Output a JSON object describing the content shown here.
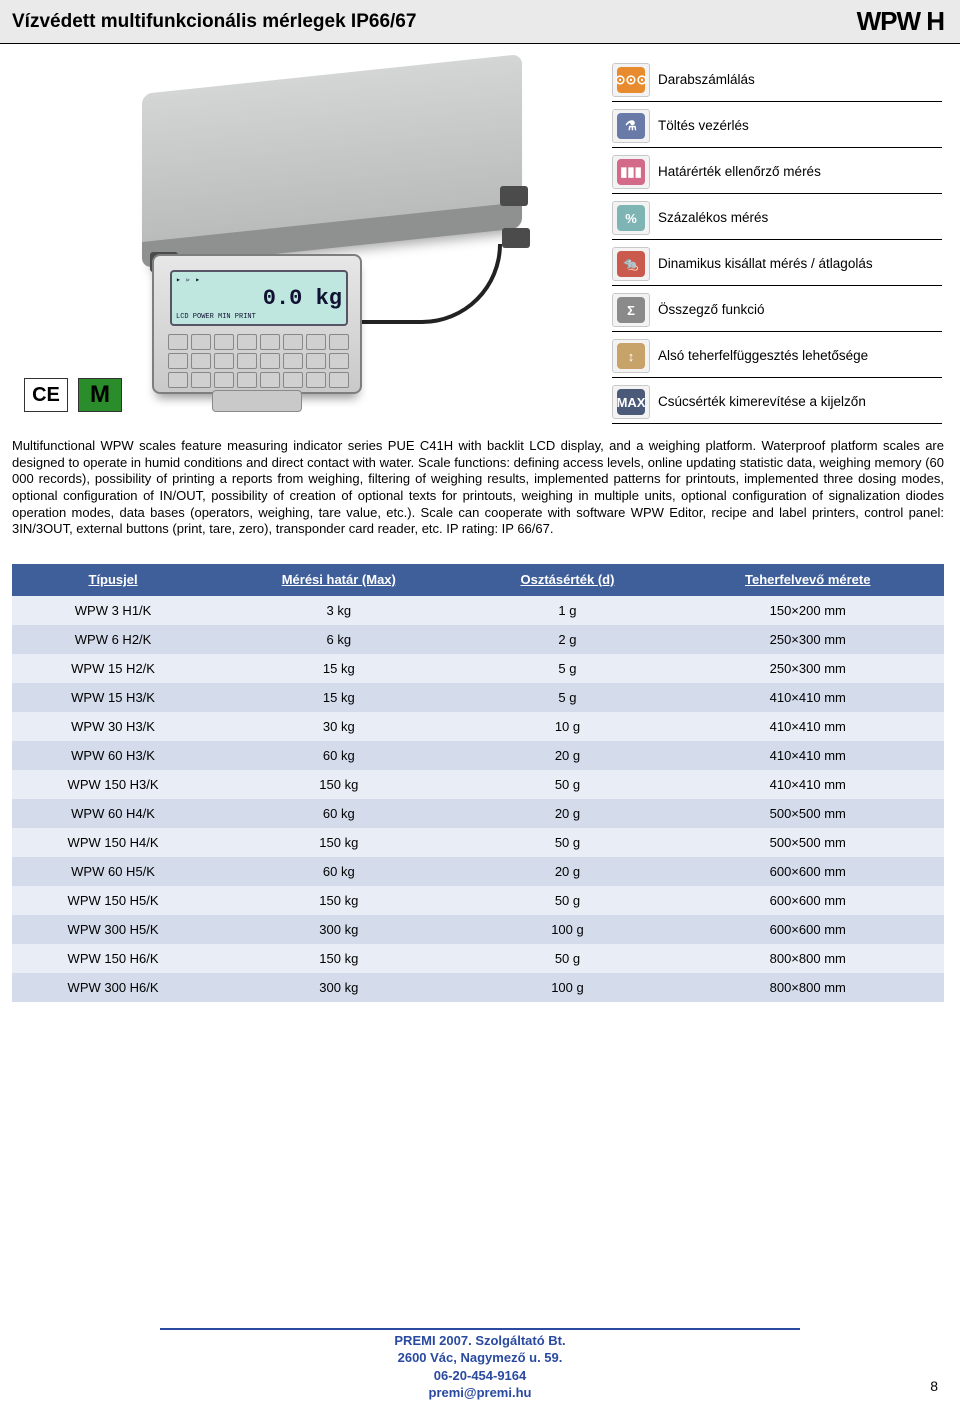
{
  "header": {
    "title": "Vízvédett multifunkcionális mérlegek IP66/67",
    "brand": "WPW H"
  },
  "display": {
    "reading": "0.0 kg"
  },
  "cert": {
    "ce": "CE",
    "m": "M"
  },
  "features": [
    {
      "glyphClass": "g-orange",
      "glyph": "⊙⊙⊙",
      "label": "Darabszámlálás"
    },
    {
      "glyphClass": "g-blue",
      "glyph": "⚗",
      "label": "Töltés vezérlés"
    },
    {
      "glyphClass": "g-pink",
      "glyph": "▮▮▮",
      "label": "Határérték ellenőrző mérés"
    },
    {
      "glyphClass": "g-teal",
      "glyph": "%",
      "label": "Százalékos mérés"
    },
    {
      "glyphClass": "g-red",
      "glyph": "🐀",
      "label": "Dinamikus kisállat mérés / átlagolás"
    },
    {
      "glyphClass": "g-grey",
      "glyph": "Σ",
      "label": "Összegző funkció"
    },
    {
      "glyphClass": "g-tan",
      "glyph": "↕",
      "label": "Alsó teherfelfüggesztés lehetősége"
    },
    {
      "glyphClass": "g-navy",
      "glyph": "MAX",
      "label": "Csúcsérték kimerevítése a kijelzőn"
    }
  ],
  "description": "Multifunctional WPW scales feature measuring indicator series PUE C41H with backlit LCD display, and a weighing platform. Waterproof platform scales are designed to operate in humid conditions and direct contact with water. Scale functions: defining access levels, online updating statistic data, weighing memory (60 000 records), possibility of printing a reports from weighing, filtering of weighing results, implemented patterns for printouts, implemented three dosing modes, optional configuration of IN/OUT, possibility of creation of optional texts for printouts, weighing in multiple units, optional configuration of signalization diodes operation modes, data bases (operators, weighing, tare value, etc.). Scale can cooperate with software WPW Editor, recipe and label printers, control panel: 3IN/3OUT, external buttons (print, tare, zero), transponder card reader, etc. IP rating: IP 66/67.",
  "table": {
    "columns": [
      "Típusjel",
      "Mérési határ (Max)",
      "Osztásérték (d)",
      "Teherfelvevő mérete"
    ],
    "rows": [
      [
        "WPW 3 H1/K",
        "3 kg",
        "1 g",
        "150×200 mm"
      ],
      [
        "WPW 6 H2/K",
        "6 kg",
        "2 g",
        "250×300 mm"
      ],
      [
        "WPW 15 H2/K",
        "15 kg",
        "5 g",
        "250×300 mm"
      ],
      [
        "WPW 15 H3/K",
        "15 kg",
        "5 g",
        "410×410 mm"
      ],
      [
        "WPW 30 H3/K",
        "30 kg",
        "10 g",
        "410×410 mm"
      ],
      [
        "WPW 60 H3/K",
        "60 kg",
        "20 g",
        "410×410 mm"
      ],
      [
        "WPW 150 H3/K",
        "150 kg",
        "50 g",
        "410×410 mm"
      ],
      [
        "WPW 60 H4/K",
        "60 kg",
        "20 g",
        "500×500 mm"
      ],
      [
        "WPW 150 H4/K",
        "150 kg",
        "50 g",
        "500×500 mm"
      ],
      [
        "WPW 60 H5/K",
        "60 kg",
        "20 g",
        "600×600 mm"
      ],
      [
        "WPW 150 H5/K",
        "150 kg",
        "50 g",
        "600×600 mm"
      ],
      [
        "WPW 300 H5/K",
        "300 kg",
        "100 g",
        "600×600 mm"
      ],
      [
        "WPW 150 H6/K",
        "150 kg",
        "50 g",
        "800×800 mm"
      ],
      [
        "WPW 300 H6/K",
        "300 kg",
        "100 g",
        "800×800 mm"
      ]
    ]
  },
  "footer": {
    "lines": [
      "PREMI 2007. Szolgáltató Bt.",
      "2600 Vác, Nagymező u. 59.",
      "06-20-454-9164",
      "premi@premi.hu"
    ]
  },
  "page": "8"
}
